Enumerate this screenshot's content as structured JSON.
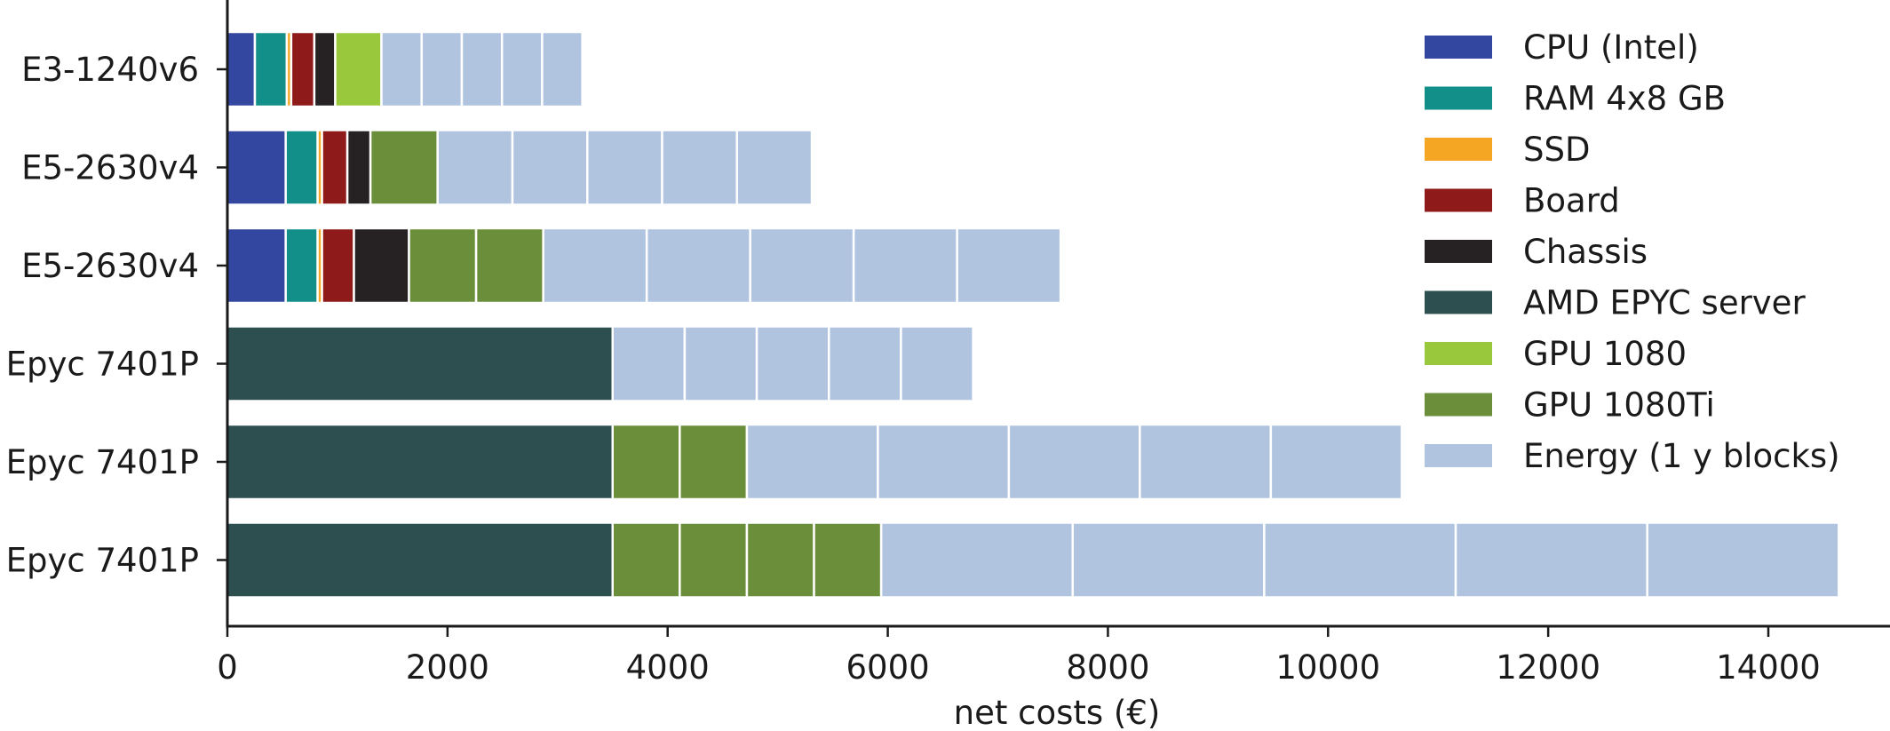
{
  "chart_data": {
    "type": "bar",
    "orientation": "horizontal",
    "stacked": true,
    "xlabel": "net costs (€)",
    "ylabel": "",
    "xlim": [
      0,
      15100
    ],
    "xticks": [
      0,
      2000,
      4000,
      6000,
      8000,
      10000,
      12000,
      14000
    ],
    "grid": false,
    "legend_position": "top-right",
    "legend": [
      {
        "name": "CPU (Intel)",
        "color": "#3346a0"
      },
      {
        "name": "RAM 4x8 GB",
        "color": "#138f8a"
      },
      {
        "name": "SSD",
        "color": "#f5a623"
      },
      {
        "name": "Board",
        "color": "#8e1a1a"
      },
      {
        "name": "Chassis",
        "color": "#262223"
      },
      {
        "name": "AMD EPYC server",
        "color": "#2d4f50"
      },
      {
        "name": "GPU 1080",
        "color": "#9ac83d"
      },
      {
        "name": "GPU 1080Ti",
        "color": "#6b8e3a"
      },
      {
        "name": "Energy (1 y blocks)",
        "color": "#b0c4e0"
      }
    ],
    "bars": [
      {
        "label": "E3-1240v6",
        "segments": [
          {
            "series": "CPU (Intel)",
            "value": 250
          },
          {
            "series": "RAM 4x8 GB",
            "value": 290
          },
          {
            "series": "SSD",
            "value": 40
          },
          {
            "series": "Board",
            "value": 210
          },
          {
            "series": "Chassis",
            "value": 190
          },
          {
            "series": "GPU 1080",
            "value": 420
          },
          {
            "series": "Energy (1 y blocks)",
            "value": 365
          },
          {
            "series": "Energy (1 y blocks)",
            "value": 365
          },
          {
            "series": "Energy (1 y blocks)",
            "value": 365
          },
          {
            "series": "Energy (1 y blocks)",
            "value": 365
          },
          {
            "series": "Energy (1 y blocks)",
            "value": 365
          }
        ]
      },
      {
        "label": "E5-2630v4",
        "segments": [
          {
            "series": "CPU (Intel)",
            "value": 530
          },
          {
            "series": "RAM 4x8 GB",
            "value": 290
          },
          {
            "series": "SSD",
            "value": 40
          },
          {
            "series": "Board",
            "value": 230
          },
          {
            "series": "Chassis",
            "value": 210
          },
          {
            "series": "GPU 1080Ti",
            "value": 610
          },
          {
            "series": "Energy (1 y blocks)",
            "value": 680
          },
          {
            "series": "Energy (1 y blocks)",
            "value": 680
          },
          {
            "series": "Energy (1 y blocks)",
            "value": 680
          },
          {
            "series": "Energy (1 y blocks)",
            "value": 680
          },
          {
            "series": "Energy (1 y blocks)",
            "value": 680
          }
        ]
      },
      {
        "label": "E5-2630v4",
        "segments": [
          {
            "series": "CPU (Intel)",
            "value": 530
          },
          {
            "series": "RAM 4x8 GB",
            "value": 290
          },
          {
            "series": "SSD",
            "value": 40
          },
          {
            "series": "Board",
            "value": 290
          },
          {
            "series": "Chassis",
            "value": 500
          },
          {
            "series": "GPU 1080Ti",
            "value": 610
          },
          {
            "series": "GPU 1080Ti",
            "value": 610
          },
          {
            "series": "Energy (1 y blocks)",
            "value": 940
          },
          {
            "series": "Energy (1 y blocks)",
            "value": 940
          },
          {
            "series": "Energy (1 y blocks)",
            "value": 940
          },
          {
            "series": "Energy (1 y blocks)",
            "value": 940
          },
          {
            "series": "Energy (1 y blocks)",
            "value": 940
          }
        ]
      },
      {
        "label": "Epyc 7401P",
        "segments": [
          {
            "series": "AMD EPYC server",
            "value": 3500
          },
          {
            "series": "Energy (1 y blocks)",
            "value": 655
          },
          {
            "series": "Energy (1 y blocks)",
            "value": 655
          },
          {
            "series": "Energy (1 y blocks)",
            "value": 655
          },
          {
            "series": "Energy (1 y blocks)",
            "value": 655
          },
          {
            "series": "Energy (1 y blocks)",
            "value": 655
          }
        ]
      },
      {
        "label": "Epyc 7401P",
        "segments": [
          {
            "series": "AMD EPYC server",
            "value": 3500
          },
          {
            "series": "GPU 1080Ti",
            "value": 610
          },
          {
            "series": "GPU 1080Ti",
            "value": 610
          },
          {
            "series": "Energy (1 y blocks)",
            "value": 1190
          },
          {
            "series": "Energy (1 y blocks)",
            "value": 1190
          },
          {
            "series": "Energy (1 y blocks)",
            "value": 1190
          },
          {
            "series": "Energy (1 y blocks)",
            "value": 1190
          },
          {
            "series": "Energy (1 y blocks)",
            "value": 1190
          }
        ]
      },
      {
        "label": "Epyc 7401P",
        "segments": [
          {
            "series": "AMD EPYC server",
            "value": 3500
          },
          {
            "series": "GPU 1080Ti",
            "value": 610
          },
          {
            "series": "GPU 1080Ti",
            "value": 610
          },
          {
            "series": "GPU 1080Ti",
            "value": 610
          },
          {
            "series": "GPU 1080Ti",
            "value": 610
          },
          {
            "series": "Energy (1 y blocks)",
            "value": 1740
          },
          {
            "series": "Energy (1 y blocks)",
            "value": 1740
          },
          {
            "series": "Energy (1 y blocks)",
            "value": 1740
          },
          {
            "series": "Energy (1 y blocks)",
            "value": 1740
          },
          {
            "series": "Energy (1 y blocks)",
            "value": 1740
          }
        ]
      }
    ]
  }
}
